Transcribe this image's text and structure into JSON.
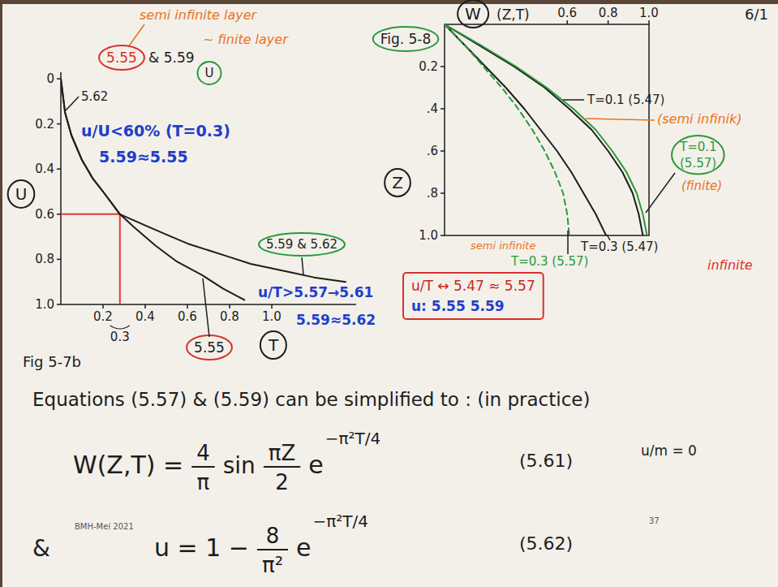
{
  "page": {
    "number": "6/1",
    "footer": "BMH-Mei 2021",
    "slide_number": "37"
  },
  "chart_data": [
    {
      "type": "line",
      "title": "Fig 5-7b",
      "x_label": "T",
      "y_label": "U",
      "xlim": [
        0,
        1.4
      ],
      "ylim": [
        1,
        0
      ],
      "xticks": [
        0.2,
        0.4,
        0.6,
        0.8,
        {
          "value": 1,
          "label": "1.0"
        }
      ],
      "yticks": [
        0,
        0.2,
        0.4,
        0.6,
        0.8,
        {
          "value": 1,
          "label": "1.0"
        }
      ],
      "grid": false,
      "series": [
        {
          "name": "5.55",
          "color": "#1d1d1d",
          "x": [
            0,
            0.02,
            0.05,
            0.1,
            0.15,
            0.2,
            0.28,
            0.35,
            0.45,
            0.55,
            0.67,
            0.77,
            0.87
          ],
          "values": [
            0,
            0.15,
            0.25,
            0.36,
            0.44,
            0.5,
            0.6,
            0.66,
            0.74,
            0.81,
            0.87,
            0.93,
            0.98
          ]
        },
        {
          "name": "5.59 & 5.62",
          "color": "#1d1d1d",
          "x": [
            0,
            0.02,
            0.05,
            0.1,
            0.15,
            0.2,
            0.28,
            0.4,
            0.5,
            0.6,
            0.7,
            0.8,
            0.9,
            1.0,
            1.1,
            1.2,
            1.35
          ],
          "values": [
            0,
            0.15,
            0.25,
            0.36,
            0.44,
            0.5,
            0.6,
            0.65,
            0.69,
            0.73,
            0.76,
            0.79,
            0.82,
            0.84,
            0.86,
            0.88,
            0.9
          ]
        }
      ],
      "reference_point": {
        "x": 0.28,
        "y": 0.6,
        "label": "0.3",
        "color": "#e23b2e"
      },
      "annotations": [
        {
          "text": "semi infinite layer",
          "color": "#e8731f"
        },
        {
          "text": "5.55",
          "color": "#d9302a"
        },
        {
          "text": "& 5.59",
          "color": "#1d1d1d"
        },
        {
          "text": "U",
          "color": "#1d1d1d"
        },
        {
          "text": "~ finite layer",
          "color": "#e8731f"
        },
        {
          "text": "5.62",
          "color": "#1d1d1d"
        },
        {
          "text": "u/U<60% (T=0.3)",
          "color": "#1f3fc8"
        },
        {
          "text": "5.59≈5.55",
          "color": "#1f3fc8"
        },
        {
          "text": "u/T>5.57→5.61",
          "color": "#1f3fc8"
        },
        {
          "text": "5.59≈5.62",
          "color": "#1f3fc8"
        }
      ]
    },
    {
      "type": "line",
      "title": "Fig. 5-8",
      "x_label": "W",
      "y_label": "Z",
      "xlim": [
        0,
        1
      ],
      "ylim": [
        1,
        0
      ],
      "xticks": [
        0.6,
        0.8,
        {
          "value": 1,
          "label": "1.0"
        }
      ],
      "yticks": [
        0.2,
        {
          "value": 0.4,
          "label": ".4"
        },
        {
          "value": 0.6,
          "label": ".6"
        },
        {
          "value": 0.8,
          "label": ".8"
        },
        {
          "value": 1,
          "label": "1.0"
        }
      ],
      "grid": false,
      "series": [
        {
          "name": "T=0.1 (5.47)",
          "color": "#1d1d1d",
          "line_style": "solid",
          "x": [
            0,
            0.17,
            0.34,
            0.49,
            0.61,
            0.72,
            0.8,
            0.87,
            0.92,
            0.95,
            0.97
          ],
          "values": [
            0,
            0.1,
            0.2,
            0.3,
            0.4,
            0.5,
            0.6,
            0.7,
            0.8,
            0.9,
            1.0
          ]
        },
        {
          "name": "T=0.3 (5.47)",
          "color": "#1d1d1d",
          "line_style": "solid",
          "x": [
            0,
            0.1,
            0.2,
            0.3,
            0.39,
            0.47,
            0.55,
            0.62,
            0.68,
            0.74,
            0.79
          ],
          "values": [
            0,
            0.1,
            0.2,
            0.3,
            0.4,
            0.5,
            0.6,
            0.7,
            0.8,
            0.9,
            1.0
          ]
        },
        {
          "name": "T=0.1 (5.57)",
          "color": "#2a9a3a",
          "line_style": "solid",
          "x": [
            0,
            0.18,
            0.35,
            0.5,
            0.63,
            0.74,
            0.82,
            0.89,
            0.94,
            0.97,
            0.99
          ],
          "values": [
            0,
            0.1,
            0.2,
            0.3,
            0.4,
            0.5,
            0.6,
            0.7,
            0.8,
            0.9,
            1.0
          ]
        },
        {
          "name": "T=0.3 (5.57)",
          "color": "#2a9a3a",
          "line_style": "dashed",
          "x": [
            0,
            0.1,
            0.19,
            0.28,
            0.36,
            0.43,
            0.49,
            0.54,
            0.58,
            0.6,
            0.61
          ],
          "values": [
            0,
            0.1,
            0.2,
            0.3,
            0.4,
            0.5,
            0.6,
            0.7,
            0.8,
            0.9,
            1.0
          ]
        }
      ],
      "annotations": [
        {
          "text": "(Z,T)",
          "color": "#1d1d1d"
        },
        {
          "text": "(semi infinik)",
          "color": "#e8731f"
        },
        {
          "text": "(finite)",
          "color": "#e8731f"
        },
        {
          "text": "semi infinite",
          "color": "#e8731f"
        },
        {
          "text": "infinite",
          "color": "#d9302a"
        },
        {
          "text": "u/T ↔ 5.47 ≈ 5.57",
          "color": "#c8281e"
        },
        {
          "text": "u: 5.55   5.59",
          "color": "#1f3fc8"
        }
      ]
    }
  ],
  "intro": "Equations (5.57) & (5.59) can be simplified to : (in practice)",
  "equations": [
    {
      "lhs": "W(Z,T) =",
      "coefficient": {
        "numerator": "4",
        "denominator": "π"
      },
      "function": "sin",
      "argument": {
        "numerator": "πZ",
        "denominator": "2"
      },
      "base": "e",
      "exponent": "−π²T/4",
      "label": "(5.61)",
      "note": "u/m = 0"
    },
    {
      "prefix": "&",
      "lhs": "u = 1 −",
      "coefficient": {
        "numerator": "8",
        "denominator": "π²"
      },
      "base": "e",
      "exponent": "−π²T/4",
      "label": "(5.62)"
    }
  ]
}
